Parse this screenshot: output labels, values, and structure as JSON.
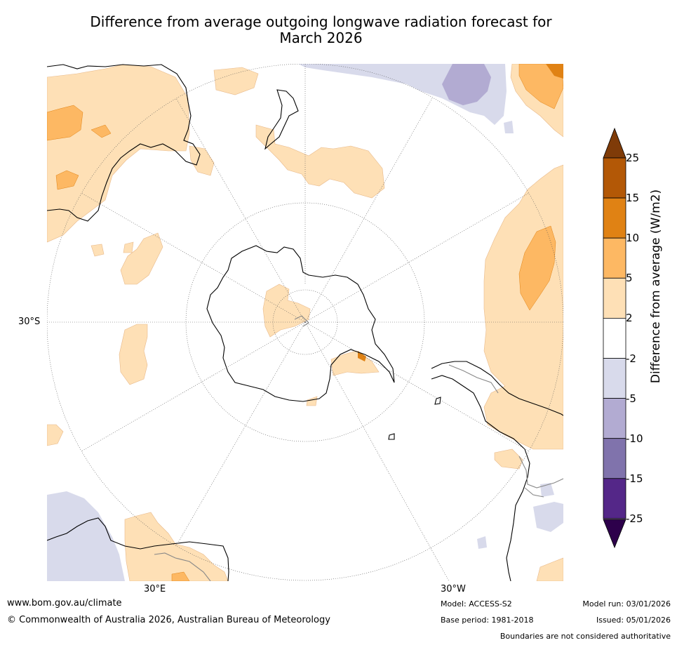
{
  "title": "Difference from average outgoing longwave radiation forecast for\nMarch 2026",
  "map": {
    "projection": "south polar stereographic",
    "lat_labels": [
      "30°S"
    ],
    "lon_labels": [
      "30°E",
      "30°W"
    ]
  },
  "colorbar": {
    "title": "Difference from average (W/m2)",
    "tick_labels": [
      "25",
      "15",
      "10",
      "5",
      "2",
      "-2",
      "-5",
      "-10",
      "-15",
      "-25"
    ],
    "colors": [
      "#7f3b08",
      "#b35806",
      "#e08214",
      "#fdb863",
      "#fee0b6",
      "#ffffff",
      "#d8daeb",
      "#b2abd2",
      "#8073ac",
      "#542788",
      "#2d004b"
    ]
  },
  "footer": {
    "website": "www.bom.gov.au/climate",
    "copyright": "© Commonwealth of Australia 2026, Australian Bureau of Meteorology",
    "model": "Model: ACCESS-S2",
    "base_period": "Base period: 1981-2018",
    "model_run": "Model run: 03/01/2026",
    "issued": "Issued: 05/01/2026",
    "disclaimer": "Boundaries are not considered authoritative"
  }
}
